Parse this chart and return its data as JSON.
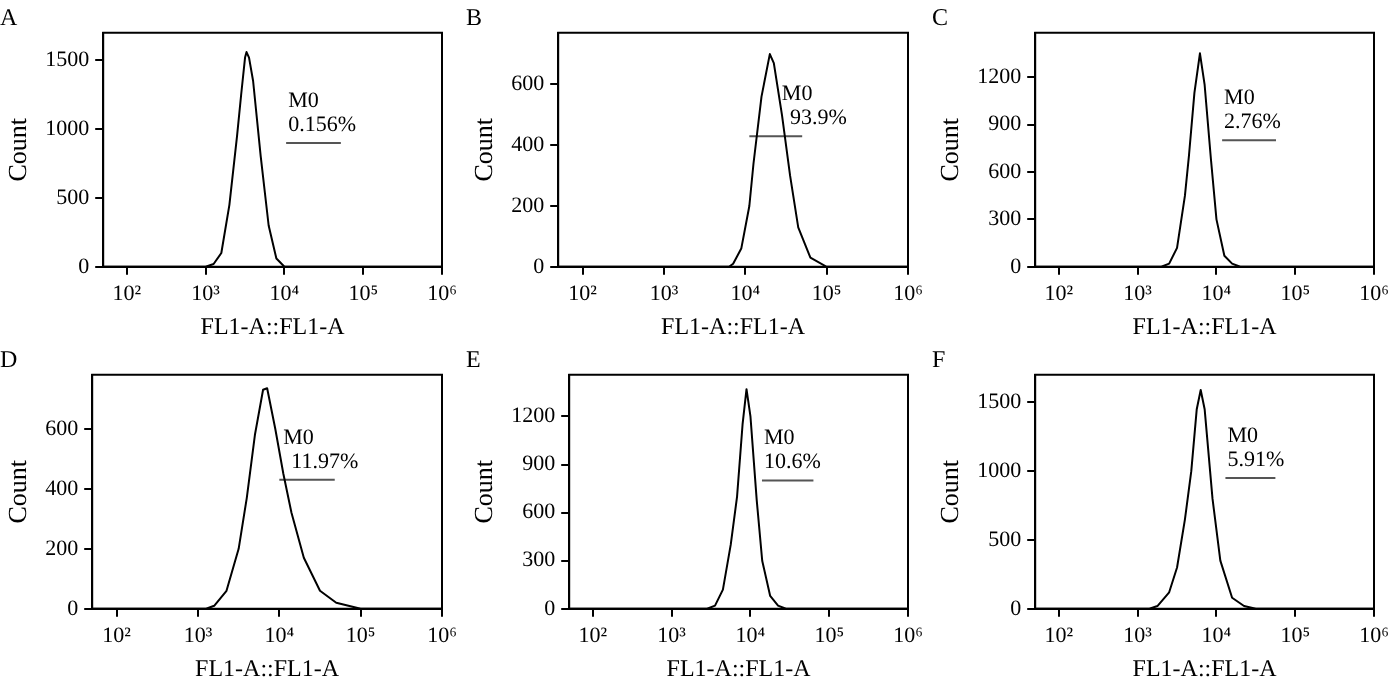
{
  "chart_data": [
    {
      "type": "line",
      "title": "A",
      "xlabel": "FL1-A::FL1-A",
      "ylabel": "Count",
      "log": "x",
      "marker": "none",
      "legend": false,
      "xlim": [
        50,
        1000000
      ],
      "xticks": [
        {
          "value": 100,
          "label": "10²"
        },
        {
          "value": 1000,
          "label": "10³"
        },
        {
          "value": 10000,
          "label": "10⁴"
        },
        {
          "value": 100000,
          "label": "10⁵"
        },
        {
          "value": 1000000,
          "label": "10⁶"
        }
      ],
      "ylim": [
        0,
        1700
      ],
      "yticks": [
        0,
        500,
        1000,
        1500
      ],
      "series": [
        {
          "color": "#000000",
          "x": [
            50,
            1000,
            1260,
            1580,
            2000,
            2500,
            2820,
            3160,
            3300,
            3550,
            4000,
            5000,
            6300,
            7900,
            10000,
            1000000
          ],
          "values": [
            0,
            0,
            20,
            100,
            450,
            950,
            1250,
            1520,
            1560,
            1520,
            1350,
            800,
            300,
            60,
            0,
            0
          ]
        },
        {
          "color": "#555555",
          "x": [
            10500,
            52000
          ],
          "values": [
            900,
            900
          ]
        }
      ],
      "annotations": [
        "M0",
        "0.156%"
      ]
    },
    {
      "type": "line",
      "title": "B",
      "xlabel": "FL1-A::FL1-A",
      "ylabel": "Count",
      "log": "x",
      "marker": "none",
      "legend": false,
      "xlim": [
        50,
        1000000
      ],
      "xticks": [
        {
          "value": 100,
          "label": "10²"
        },
        {
          "value": 1000,
          "label": "10³"
        },
        {
          "value": 10000,
          "label": "10⁴"
        },
        {
          "value": 100000,
          "label": "10⁵"
        },
        {
          "value": 1000000,
          "label": "10⁶"
        }
      ],
      "ylim": [
        0,
        770
      ],
      "yticks": [
        0,
        200,
        400,
        600
      ],
      "series": [
        {
          "color": "#000000",
          "x": [
            50,
            6300,
            7080,
            8910,
            11200,
            12600,
            15800,
            20000,
            22400,
            28200,
            35500,
            44700,
            63100,
            100000,
            126000,
            1000000
          ],
          "values": [
            0,
            0,
            10,
            60,
            200,
            340,
            560,
            700,
            670,
            500,
            300,
            130,
            30,
            0,
            0,
            0
          ]
        },
        {
          "color": "#555555",
          "x": [
            11200,
            50000
          ],
          "values": [
            430,
            430
          ]
        }
      ],
      "annotations": [
        "M0",
        "93.9%"
      ]
    },
    {
      "type": "line",
      "title": "C",
      "xlabel": "FL1-A::FL1-A",
      "ylabel": "Count",
      "log": "x",
      "marker": "none",
      "legend": false,
      "xlim": [
        50,
        1000000
      ],
      "xticks": [
        {
          "value": 100,
          "label": "10²"
        },
        {
          "value": 1000,
          "label": "10³"
        },
        {
          "value": 10000,
          "label": "10⁴"
        },
        {
          "value": 100000,
          "label": "10⁵"
        },
        {
          "value": 1000000,
          "label": "10⁶"
        }
      ],
      "ylim": [
        0,
        1480
      ],
      "yticks": [
        0,
        300,
        600,
        900,
        1200
      ],
      "series": [
        {
          "color": "#000000",
          "x": [
            50,
            2000,
            2510,
            3160,
            3980,
            4470,
            5250,
            6170,
            7080,
            8510,
            10000,
            12600,
            15800,
            20000,
            1000000
          ],
          "values": [
            0,
            0,
            20,
            120,
            450,
            700,
            1100,
            1350,
            1150,
            680,
            300,
            70,
            20,
            0,
            0
          ]
        },
        {
          "color": "#555555",
          "x": [
            11800,
            57000
          ],
          "values": [
            800,
            800
          ]
        }
      ],
      "annotations": [
        "M0",
        "2.76%"
      ]
    },
    {
      "type": "line",
      "title": "D",
      "xlabel": "FL1-A::FL1-A",
      "ylabel": "Count",
      "log": "x",
      "marker": "none",
      "legend": false,
      "xlim": [
        50,
        1000000
      ],
      "xticks": [
        {
          "value": 100,
          "label": "10²"
        },
        {
          "value": 1000,
          "label": "10³"
        },
        {
          "value": 10000,
          "label": "10⁴"
        },
        {
          "value": 100000,
          "label": "10⁵"
        },
        {
          "value": 1000000,
          "label": "10⁶"
        }
      ],
      "ylim": [
        0,
        780
      ],
      "yticks": [
        0,
        200,
        400,
        600
      ],
      "series": [
        {
          "color": "#000000",
          "x": [
            50,
            1260,
            1580,
            2240,
            3160,
            3980,
            5010,
            6310,
            7080,
            8910,
            11200,
            14100,
            20000,
            31600,
            50100,
            100000,
            316000,
            794000,
            1000000
          ],
          "values": [
            0,
            0,
            10,
            60,
            200,
            370,
            580,
            730,
            735,
            600,
            450,
            320,
            170,
            60,
            20,
            0,
            0,
            0,
            0
          ]
        },
        {
          "color": "#555555",
          "x": [
            10000,
            48000
          ],
          "values": [
            430,
            430
          ]
        }
      ],
      "annotations": [
        "M0",
        "11.97%"
      ]
    },
    {
      "type": "line",
      "title": "E",
      "xlabel": "FL1-A::FL1-A",
      "ylabel": "Count",
      "log": "x",
      "marker": "none",
      "legend": false,
      "xlim": [
        50,
        1000000
      ],
      "xticks": [
        {
          "value": 100,
          "label": "10²"
        },
        {
          "value": 1000,
          "label": "10³"
        },
        {
          "value": 10000,
          "label": "10⁴"
        },
        {
          "value": 100000,
          "label": "10⁵"
        },
        {
          "value": 1000000,
          "label": "10⁶"
        }
      ],
      "ylim": [
        0,
        1460
      ],
      "yticks": [
        0,
        300,
        600,
        900,
        1200
      ],
      "series": [
        {
          "color": "#000000",
          "x": [
            50,
            2820,
            3550,
            4470,
            5620,
            6760,
            7940,
            8910,
            10000,
            12000,
            14100,
            17800,
            22400,
            28200,
            1000000
          ],
          "values": [
            0,
            0,
            20,
            120,
            400,
            700,
            1150,
            1370,
            1200,
            680,
            300,
            80,
            20,
            0,
            0
          ]
        },
        {
          "color": "#555555",
          "x": [
            14000,
            63000
          ],
          "values": [
            800,
            800
          ]
        }
      ],
      "annotations": [
        "M0",
        "10.6%"
      ]
    },
    {
      "type": "line",
      "title": "F",
      "xlabel": "FL1-A::FL1-A",
      "ylabel": "Count",
      "log": "x",
      "marker": "none",
      "legend": false,
      "xlim": [
        50,
        1000000
      ],
      "xticks": [
        {
          "value": 100,
          "label": "10²"
        },
        {
          "value": 1000,
          "label": "10³"
        },
        {
          "value": 10000,
          "label": "10⁴"
        },
        {
          "value": 100000,
          "label": "10⁵"
        },
        {
          "value": 1000000,
          "label": "10⁶"
        }
      ],
      "ylim": [
        0,
        1700
      ],
      "yticks": [
        0,
        500,
        1000,
        1500
      ],
      "series": [
        {
          "color": "#000000",
          "x": [
            50,
            1410,
            1780,
            2510,
            3160,
            3980,
            4790,
            5620,
            6310,
            7080,
            8910,
            11200,
            15800,
            22400,
            31600,
            1000000
          ],
          "values": [
            0,
            0,
            20,
            120,
            300,
            650,
            1000,
            1450,
            1590,
            1450,
            800,
            350,
            80,
            20,
            0,
            0
          ]
        },
        {
          "color": "#555555",
          "x": [
            13000,
            56000
          ],
          "values": [
            950,
            950
          ]
        }
      ],
      "annotations": [
        "M0",
        "5.91%"
      ]
    }
  ]
}
